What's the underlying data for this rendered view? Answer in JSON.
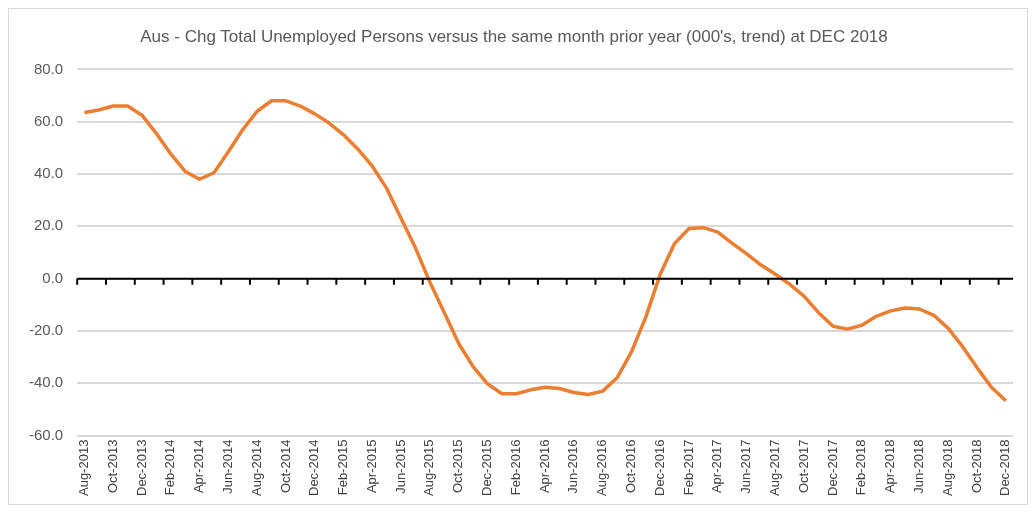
{
  "chart_data": {
    "type": "line",
    "title": "Aus - Chg Total Unemployed Persons versus the same month prior year (000's, trend) at DEC 2018",
    "categories": [
      "Aug-2013",
      null,
      "Oct-2013",
      null,
      "Dec-2013",
      null,
      "Feb-2014",
      null,
      "Apr-2014",
      null,
      "Jun-2014",
      null,
      "Aug-2014",
      null,
      "Oct-2014",
      null,
      "Dec-2014",
      null,
      "Feb-2015",
      null,
      "Apr-2015",
      null,
      "Jun-2015",
      null,
      "Aug-2015",
      null,
      "Oct-2015",
      null,
      "Dec-2015",
      null,
      "Feb-2016",
      null,
      "Apr-2016",
      null,
      "Jun-2016",
      null,
      "Aug-2016",
      null,
      "Oct-2016",
      null,
      "Dec-2016",
      null,
      "Feb-2017",
      null,
      "Apr-2017",
      null,
      "Jun-2017",
      null,
      "Aug-2017",
      null,
      "Oct-2017",
      null,
      "Dec-2017",
      null,
      "Feb-2018",
      null,
      "Apr-2018",
      null,
      "Jun-2018",
      null,
      "Aug-2018",
      null,
      "Oct-2018",
      null,
      "Dec-2018"
    ],
    "series": [
      {
        "color": "#ed7d31",
        "values": [
          63.5,
          64.5,
          66,
          66,
          62.5,
          55.5,
          47.7,
          41,
          38,
          40.5,
          48.5,
          57,
          64,
          68,
          68,
          66,
          63,
          59.5,
          55,
          49.5,
          43,
          34.5,
          23,
          11.7,
          -1.4,
          -13,
          -24.8,
          -33.6,
          -40.2,
          -44,
          -44,
          -42.5,
          -41.5,
          -42,
          -43.5,
          -44.3,
          -43,
          -37.9,
          -28,
          -14.6,
          1.8,
          13.5,
          19.2,
          19.5,
          17.8,
          13.5,
          9.5,
          5.2,
          1.7,
          -2.2,
          -6.8,
          -13,
          -18.2,
          -19.3,
          -17.8,
          -14.4,
          -12.3,
          -11.2,
          -11.6,
          -14,
          -19,
          -26,
          -34,
          -41.5,
          -46.7
        ]
      }
    ],
    "ylim": [
      -60,
      80
    ],
    "yticks": [
      {
        "value": -60,
        "label": "-60.0"
      },
      {
        "value": -40,
        "label": "-40.0"
      },
      {
        "value": -20,
        "label": "-20.0"
      },
      {
        "value": 0,
        "label": "0.0"
      },
      {
        "value": 20,
        "label": "20.0"
      },
      {
        "value": 40,
        "label": "40.0"
      },
      {
        "value": 60,
        "label": "60.0"
      },
      {
        "value": 80,
        "label": "80.0"
      }
    ],
    "grid": "y",
    "legend": false,
    "marker": "none",
    "line_style": "solid"
  }
}
